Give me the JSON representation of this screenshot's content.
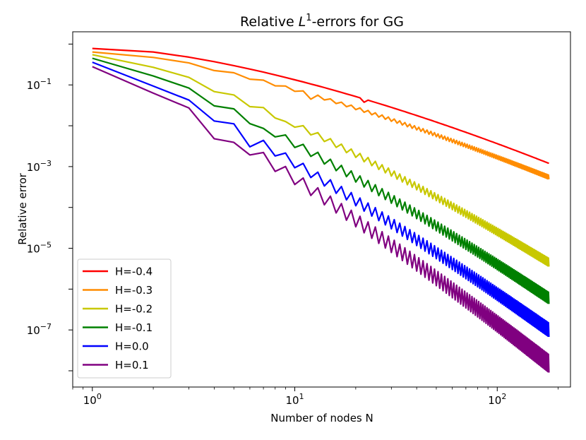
{
  "chart_data": {
    "type": "line",
    "title": {
      "prefix": "Relative ",
      "italic": "L",
      "superscript": "1",
      "suffix": "-errors for GG"
    },
    "xlabel": "Number of nodes N",
    "ylabel": "Relative error",
    "x_scale": "log",
    "y_scale": "log",
    "xlim": [
      0.8,
      230
    ],
    "ylim": [
      4e-09,
      2.0
    ],
    "x_ticks": [
      {
        "value": 1,
        "base": "10",
        "exp": "0"
      },
      {
        "value": 10,
        "base": "10",
        "exp": "1"
      },
      {
        "value": 100,
        "base": "10",
        "exp": "2"
      }
    ],
    "y_ticks": [
      {
        "value": 0.1,
        "base": "10",
        "exp": "−1"
      },
      {
        "value": 0.001,
        "base": "10",
        "exp": "−3"
      },
      {
        "value": 1e-05,
        "base": "10",
        "exp": "−5"
      },
      {
        "value": 1e-07,
        "base": "10",
        "exp": "−7"
      }
    ],
    "grid": false,
    "legend_position": "bottom-left",
    "x_max_points": 180,
    "series": [
      {
        "name": "H=-0.4",
        "color": "#ff0000",
        "y_at_1": 0.78,
        "y_at_180": 0.0012,
        "drop_start": 0.04,
        "drop_exp": 1.5,
        "zigzag": 0.0,
        "breaks": [
          [
            22,
            0.08
          ]
        ]
      },
      {
        "name": "H=-0.3",
        "color": "#ff8c00",
        "y_at_1": 0.64,
        "y_at_180": 0.00055,
        "drop_start": 0.03,
        "drop_exp": 1.4,
        "zigzag": 0.05,
        "breaks": [
          [
            12,
            0.08
          ]
        ]
      },
      {
        "name": "H=-0.2",
        "color": "#c8c800",
        "y_at_1": 0.55,
        "y_at_180": 4.5e-06,
        "drop_start": 0.02,
        "drop_exp": 1.3,
        "zigzag": 0.1,
        "breaks": [
          [
            9,
            0.1
          ]
        ]
      },
      {
        "name": "H=-0.1",
        "color": "#008000",
        "y_at_1": 0.45,
        "y_at_180": 6e-07,
        "drop_start": 0.01,
        "drop_exp": 1.25,
        "zigzag": 0.14,
        "breaks": [
          [
            7,
            0.12
          ]
        ]
      },
      {
        "name": "H=0.0",
        "color": "#0000ff",
        "y_at_1": 0.36,
        "y_at_180": 1e-07,
        "drop_start": 0.0,
        "drop_exp": 1.2,
        "zigzag": 0.17,
        "breaks": [
          [
            6,
            0.14
          ]
        ]
      },
      {
        "name": "H=0.1",
        "color": "#800080",
        "y_at_1": 0.28,
        "y_at_180": 1.5e-08,
        "drop_start": 0.0,
        "drop_exp": 1.2,
        "zigzag": 0.22,
        "breaks": [
          [
            4,
            0.15
          ],
          [
            5,
            0.2
          ]
        ]
      }
    ]
  }
}
